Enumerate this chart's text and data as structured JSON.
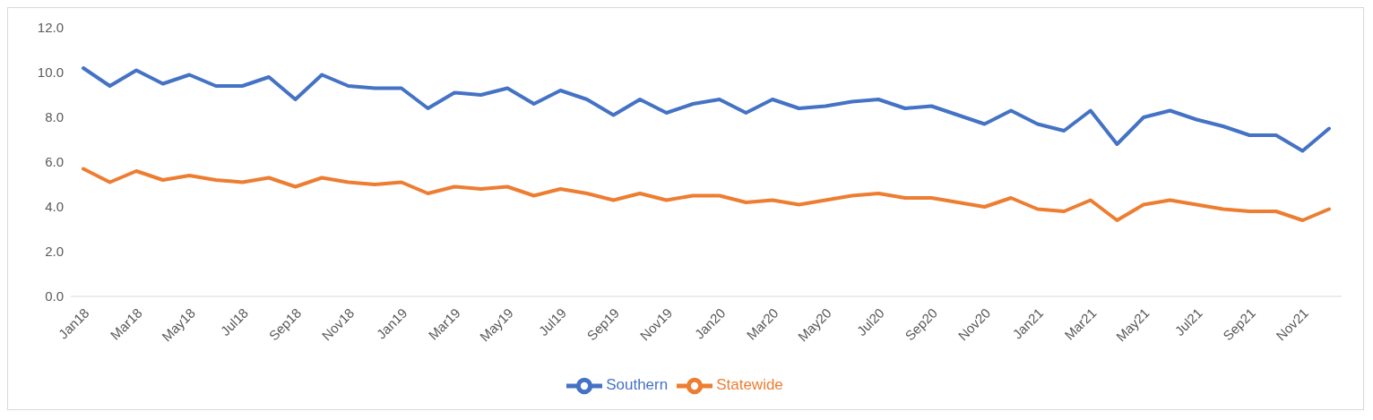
{
  "chart_data": {
    "type": "line",
    "categories": [
      "Jan18",
      null,
      "Mar18",
      null,
      "May18",
      null,
      "Jul18",
      null,
      "Sep18",
      null,
      "Nov18",
      null,
      "Jan19",
      null,
      "Mar19",
      null,
      "May19",
      null,
      "Jul19",
      null,
      "Sep19",
      null,
      "Nov19",
      null,
      "Jan20",
      null,
      "Mar20",
      null,
      "May20",
      null,
      "Jul20",
      null,
      "Sep20",
      null,
      "Nov20",
      null,
      "Jan21",
      null,
      "Mar21",
      null,
      "May21",
      null,
      "Jul21",
      null,
      "Sep21",
      null,
      "Nov21",
      null
    ],
    "series": [
      {
        "name": "Southern",
        "color": "#4472c4",
        "values": [
          10.2,
          9.4,
          10.1,
          9.5,
          9.9,
          9.4,
          9.4,
          9.8,
          8.8,
          9.9,
          9.4,
          9.3,
          9.3,
          8.4,
          9.1,
          9.0,
          9.3,
          8.6,
          9.2,
          8.8,
          8.1,
          8.8,
          8.2,
          8.6,
          8.8,
          8.2,
          8.8,
          8.4,
          8.5,
          8.7,
          8.8,
          8.4,
          8.5,
          8.1,
          7.7,
          8.3,
          7.7,
          7.4,
          8.3,
          6.8,
          8.0,
          8.3,
          7.9,
          7.6,
          7.2,
          7.2,
          6.5,
          7.5
        ]
      },
      {
        "name": "Statewide",
        "color": "#ed7d31",
        "values": [
          5.7,
          5.1,
          5.6,
          5.2,
          5.4,
          5.2,
          5.1,
          5.3,
          4.9,
          5.3,
          5.1,
          5.0,
          5.1,
          4.6,
          4.9,
          4.8,
          4.9,
          4.5,
          4.8,
          4.6,
          4.3,
          4.6,
          4.3,
          4.5,
          4.5,
          4.2,
          4.3,
          4.1,
          4.3,
          4.5,
          4.6,
          4.4,
          4.4,
          4.2,
          4.0,
          4.4,
          3.9,
          3.8,
          4.3,
          3.4,
          4.1,
          4.3,
          4.1,
          3.9,
          3.8,
          3.8,
          3.4,
          3.9
        ]
      }
    ],
    "ylim": [
      0,
      12
    ],
    "yticks": [
      {
        "value": 0,
        "label": "0.0"
      },
      {
        "value": 2,
        "label": "2.0"
      },
      {
        "value": 4,
        "label": "4.0"
      },
      {
        "value": 6,
        "label": "6.0"
      },
      {
        "value": 8,
        "label": "8.0"
      },
      {
        "value": 10,
        "label": "10.0"
      },
      {
        "value": 12,
        "label": "12.0"
      }
    ],
    "legend": "bottom",
    "marker": "none",
    "line_style": "solid"
  }
}
